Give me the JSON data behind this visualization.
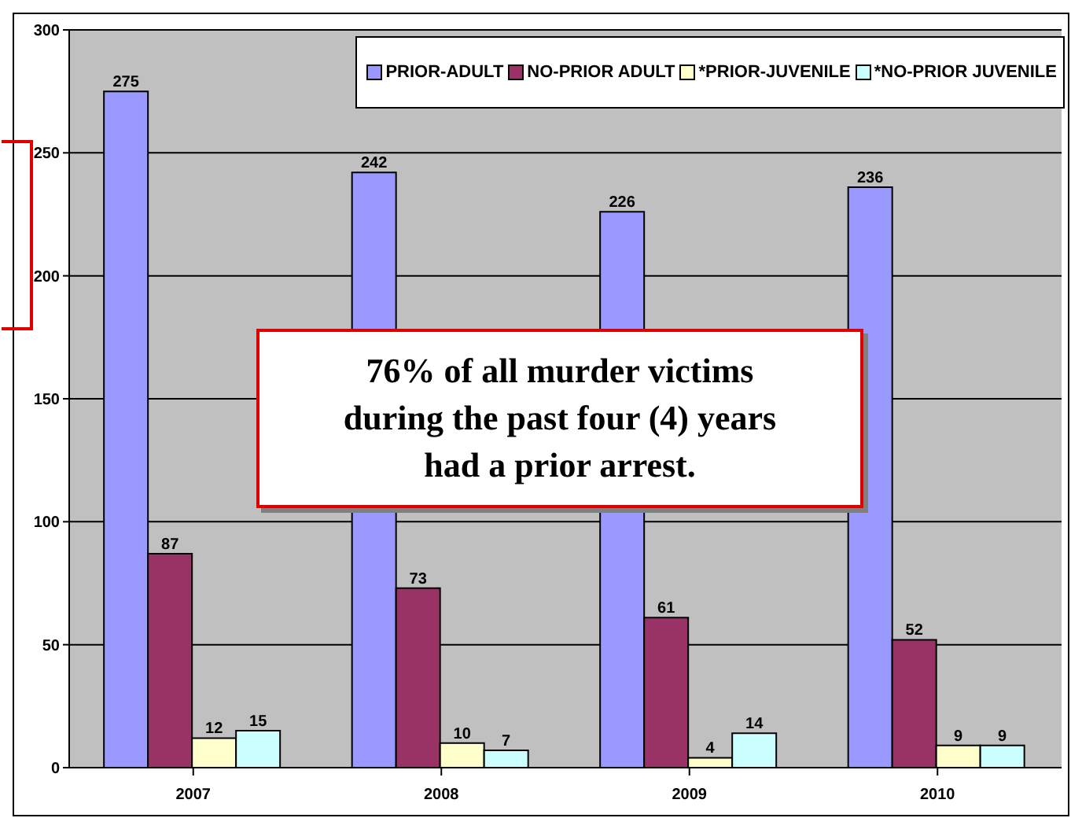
{
  "chart_data": {
    "type": "bar",
    "categories": [
      "2007",
      "2008",
      "2009",
      "2010"
    ],
    "series": [
      {
        "name": "PRIOR-ADULT",
        "color": "#9999ff",
        "values": [
          275,
          242,
          226,
          236
        ]
      },
      {
        "name": "NO-PRIOR ADULT",
        "color": "#993366",
        "values": [
          87,
          73,
          61,
          52
        ]
      },
      {
        "name": "*PRIOR-JUVENILE",
        "color": "#ffffcc",
        "values": [
          12,
          10,
          4,
          9
        ]
      },
      {
        "name": "*NO-PRIOR JUVENILE",
        "color": "#ccffff",
        "values": [
          15,
          7,
          14,
          9
        ]
      }
    ],
    "ylim": [
      0,
      300
    ],
    "yticks": [
      0,
      50,
      100,
      150,
      200,
      250,
      300
    ],
    "grid": "y",
    "legend": "top right",
    "data_labels": true,
    "annotations": [
      "76% of all murder victims during the past four (4) years had a prior arrest."
    ]
  }
}
